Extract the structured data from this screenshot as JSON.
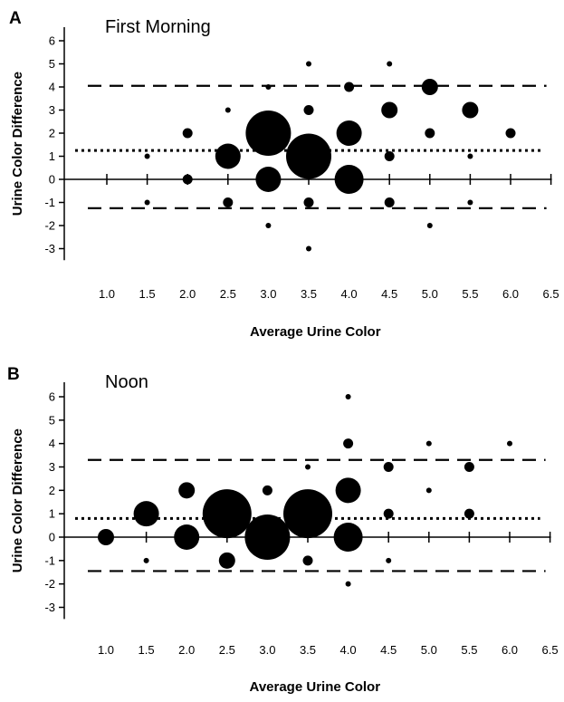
{
  "chart_data": [
    {
      "type": "scatter",
      "panel_label": "A",
      "title": "First Morning",
      "xlabel": "Average Urine Color",
      "ylabel": "Urine Color Difference",
      "xlim": [
        0.5,
        6.5
      ],
      "ylim": [
        -3.5,
        6.5
      ],
      "x_ticks": [
        "1.0",
        "1.5",
        "2.0",
        "2.5",
        "3.0",
        "3.5",
        "4.0",
        "4.5",
        "5.0",
        "5.5",
        "6.0",
        "6.5"
      ],
      "y_ticks": [
        "6",
        "5",
        "4",
        "3",
        "2",
        "1",
        "0",
        "-1",
        "-2",
        "-3"
      ],
      "grid": false,
      "mean_difference": 1.25,
      "limits_of_agreement": [
        4.05,
        -1.25
      ],
      "points": [
        {
          "x": 1.5,
          "y": 1,
          "size": 1
        },
        {
          "x": 1.5,
          "y": -1,
          "size": 1
        },
        {
          "x": 2.0,
          "y": 2,
          "size": 2
        },
        {
          "x": 2.0,
          "y": 0,
          "size": 2
        },
        {
          "x": 2.5,
          "y": 3,
          "size": 1
        },
        {
          "x": 2.5,
          "y": 1,
          "size": 4
        },
        {
          "x": 2.5,
          "y": -1,
          "size": 2
        },
        {
          "x": 3.0,
          "y": 4,
          "size": 1
        },
        {
          "x": 3.0,
          "y": 2,
          "size": 6
        },
        {
          "x": 3.0,
          "y": 0,
          "size": 4
        },
        {
          "x": 3.0,
          "y": -2,
          "size": 1
        },
        {
          "x": 3.5,
          "y": 5,
          "size": 1
        },
        {
          "x": 3.5,
          "y": 3,
          "size": 2
        },
        {
          "x": 3.5,
          "y": 1,
          "size": 6
        },
        {
          "x": 3.5,
          "y": -1,
          "size": 2
        },
        {
          "x": 3.5,
          "y": -3,
          "size": 1
        },
        {
          "x": 4.0,
          "y": 4,
          "size": 2
        },
        {
          "x": 4.0,
          "y": 2,
          "size": 4
        },
        {
          "x": 4.0,
          "y": 0,
          "size": 5
        },
        {
          "x": 4.5,
          "y": 5,
          "size": 1
        },
        {
          "x": 4.5,
          "y": 3,
          "size": 3
        },
        {
          "x": 4.5,
          "y": 1,
          "size": 2
        },
        {
          "x": 4.5,
          "y": -1,
          "size": 2
        },
        {
          "x": 5.0,
          "y": 4,
          "size": 3
        },
        {
          "x": 5.0,
          "y": 2,
          "size": 2
        },
        {
          "x": 5.0,
          "y": -2,
          "size": 1
        },
        {
          "x": 5.5,
          "y": 3,
          "size": 3
        },
        {
          "x": 5.5,
          "y": 1,
          "size": 1
        },
        {
          "x": 5.5,
          "y": -1,
          "size": 1
        },
        {
          "x": 6.0,
          "y": 2,
          "size": 2
        }
      ]
    },
    {
      "type": "scatter",
      "panel_label": "B",
      "title": "Noon",
      "xlabel": "Average Urine Color",
      "ylabel": "Urine Color Difference",
      "xlim": [
        0.5,
        6.5
      ],
      "ylim": [
        -3.5,
        6.5
      ],
      "x_ticks": [
        "1.0",
        "1.5",
        "2.0",
        "2.5",
        "3.0",
        "3.5",
        "4.0",
        "4.5",
        "5.0",
        "5.5",
        "6.0",
        "6.5"
      ],
      "y_ticks": [
        "6",
        "5",
        "4",
        "3",
        "2",
        "1",
        "0",
        "-1",
        "-2",
        "-3"
      ],
      "grid": false,
      "mean_difference": 0.8,
      "limits_of_agreement": [
        3.3,
        -1.45
      ],
      "points": [
        {
          "x": 1.0,
          "y": 0,
          "size": 3
        },
        {
          "x": 1.5,
          "y": 1,
          "size": 4
        },
        {
          "x": 1.5,
          "y": -1,
          "size": 1
        },
        {
          "x": 2.0,
          "y": 2,
          "size": 3
        },
        {
          "x": 2.0,
          "y": 0,
          "size": 4
        },
        {
          "x": 2.5,
          "y": 1,
          "size": 7
        },
        {
          "x": 2.5,
          "y": -1,
          "size": 3
        },
        {
          "x": 3.0,
          "y": 2,
          "size": 2
        },
        {
          "x": 3.0,
          "y": 0,
          "size": 6
        },
        {
          "x": 3.5,
          "y": 3,
          "size": 1
        },
        {
          "x": 3.5,
          "y": 1,
          "size": 7
        },
        {
          "x": 3.5,
          "y": -1,
          "size": 2
        },
        {
          "x": 4.0,
          "y": 6,
          "size": 1
        },
        {
          "x": 4.0,
          "y": 4,
          "size": 2
        },
        {
          "x": 4.0,
          "y": 2,
          "size": 4
        },
        {
          "x": 4.0,
          "y": 0,
          "size": 5
        },
        {
          "x": 4.0,
          "y": -2,
          "size": 1
        },
        {
          "x": 4.5,
          "y": 3,
          "size": 2
        },
        {
          "x": 4.5,
          "y": 1,
          "size": 2
        },
        {
          "x": 4.5,
          "y": -1,
          "size": 1
        },
        {
          "x": 5.0,
          "y": 4,
          "size": 1
        },
        {
          "x": 5.0,
          "y": 2,
          "size": 1
        },
        {
          "x": 5.5,
          "y": 3,
          "size": 2
        },
        {
          "x": 5.5,
          "y": 1,
          "size": 2
        },
        {
          "x": 6.0,
          "y": 4,
          "size": 1
        }
      ]
    }
  ]
}
